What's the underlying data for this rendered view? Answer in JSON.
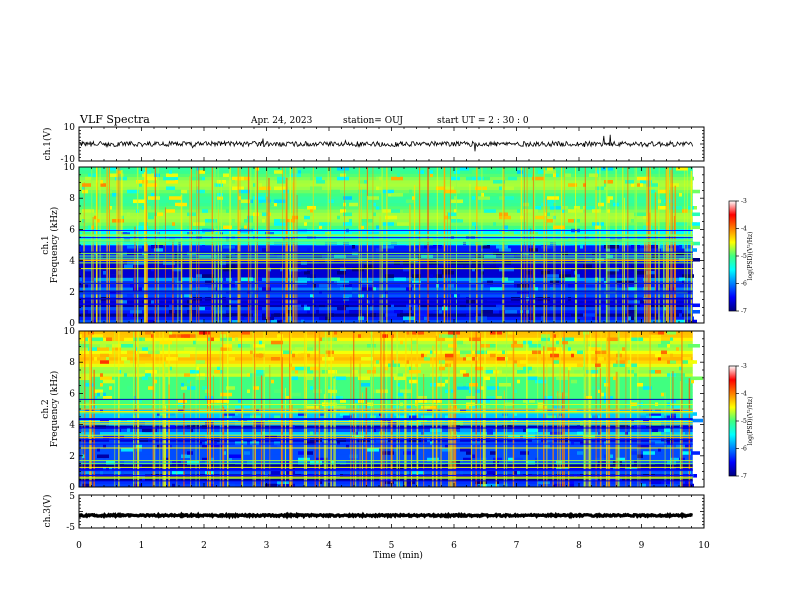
{
  "header": {
    "title": "VLF Spectra",
    "date": "Apr. 24, 2023",
    "station": "station= OUJ",
    "start": "start  UT =   2 : 30 : 0"
  },
  "chart_data": {
    "type": "heatmap",
    "x": {
      "label": "Time  (min)",
      "lim": [
        0,
        10
      ],
      "ticks": [
        0,
        1,
        2,
        3,
        4,
        5,
        6,
        7,
        8,
        9,
        10
      ],
      "tick_labels": [
        "0",
        "1",
        "2",
        "3",
        "4",
        "5",
        "6",
        "7",
        "8",
        "9",
        "10"
      ],
      "data_end": 9.82
    },
    "panels": [
      {
        "id": "ch1-waveform",
        "type": "line",
        "ylabel": "ch.1(V)",
        "ylim": [
          -10,
          10
        ],
        "ytick_labels": [
          "10",
          "-10"
        ],
        "baseline": 0,
        "noise_amplitude": 1.5
      },
      {
        "id": "ch1-spectrogram",
        "type": "heatmap",
        "ylabel_line1": "ch.1",
        "ylabel_line2": "Frequency (kHz)",
        "ylim": [
          0,
          10
        ],
        "ytick_labels": [
          "0",
          "2",
          "4",
          "6",
          "8",
          "10"
        ],
        "colorbar": {
          "label": "log(PSD)(V²/Hz)",
          "range": [
            -7,
            -3
          ],
          "tick_labels": [
            "-3",
            "-4",
            "-5",
            "-6",
            "-7"
          ]
        }
      },
      {
        "id": "ch2-spectrogram",
        "type": "heatmap",
        "ylabel_line1": "ch.2",
        "ylabel_line2": "Frequency (kHz)",
        "ylim": [
          0,
          10
        ],
        "ytick_labels": [
          "0",
          "2",
          "4",
          "6",
          "8",
          "10"
        ],
        "colorbar": {
          "label": "log(PSD)(V²/Hz)",
          "range": [
            -7,
            -3
          ],
          "tick_labels": [
            "-3",
            "-4",
            "-5",
            "-6",
            "-7"
          ]
        }
      },
      {
        "id": "ch3-waveform",
        "type": "line",
        "ylabel": "ch.3(V)",
        "ylim": [
          -5,
          5
        ],
        "ytick_labels": [
          "5",
          "-5"
        ],
        "baseline": -1.2,
        "noise_amplitude": 0.25
      }
    ],
    "colormap": [
      "#000080",
      "#0000ff",
      "#0080ff",
      "#00ffff",
      "#40ff80",
      "#ffff00",
      "#ff8000",
      "#ff0000",
      "#ffffff"
    ]
  }
}
